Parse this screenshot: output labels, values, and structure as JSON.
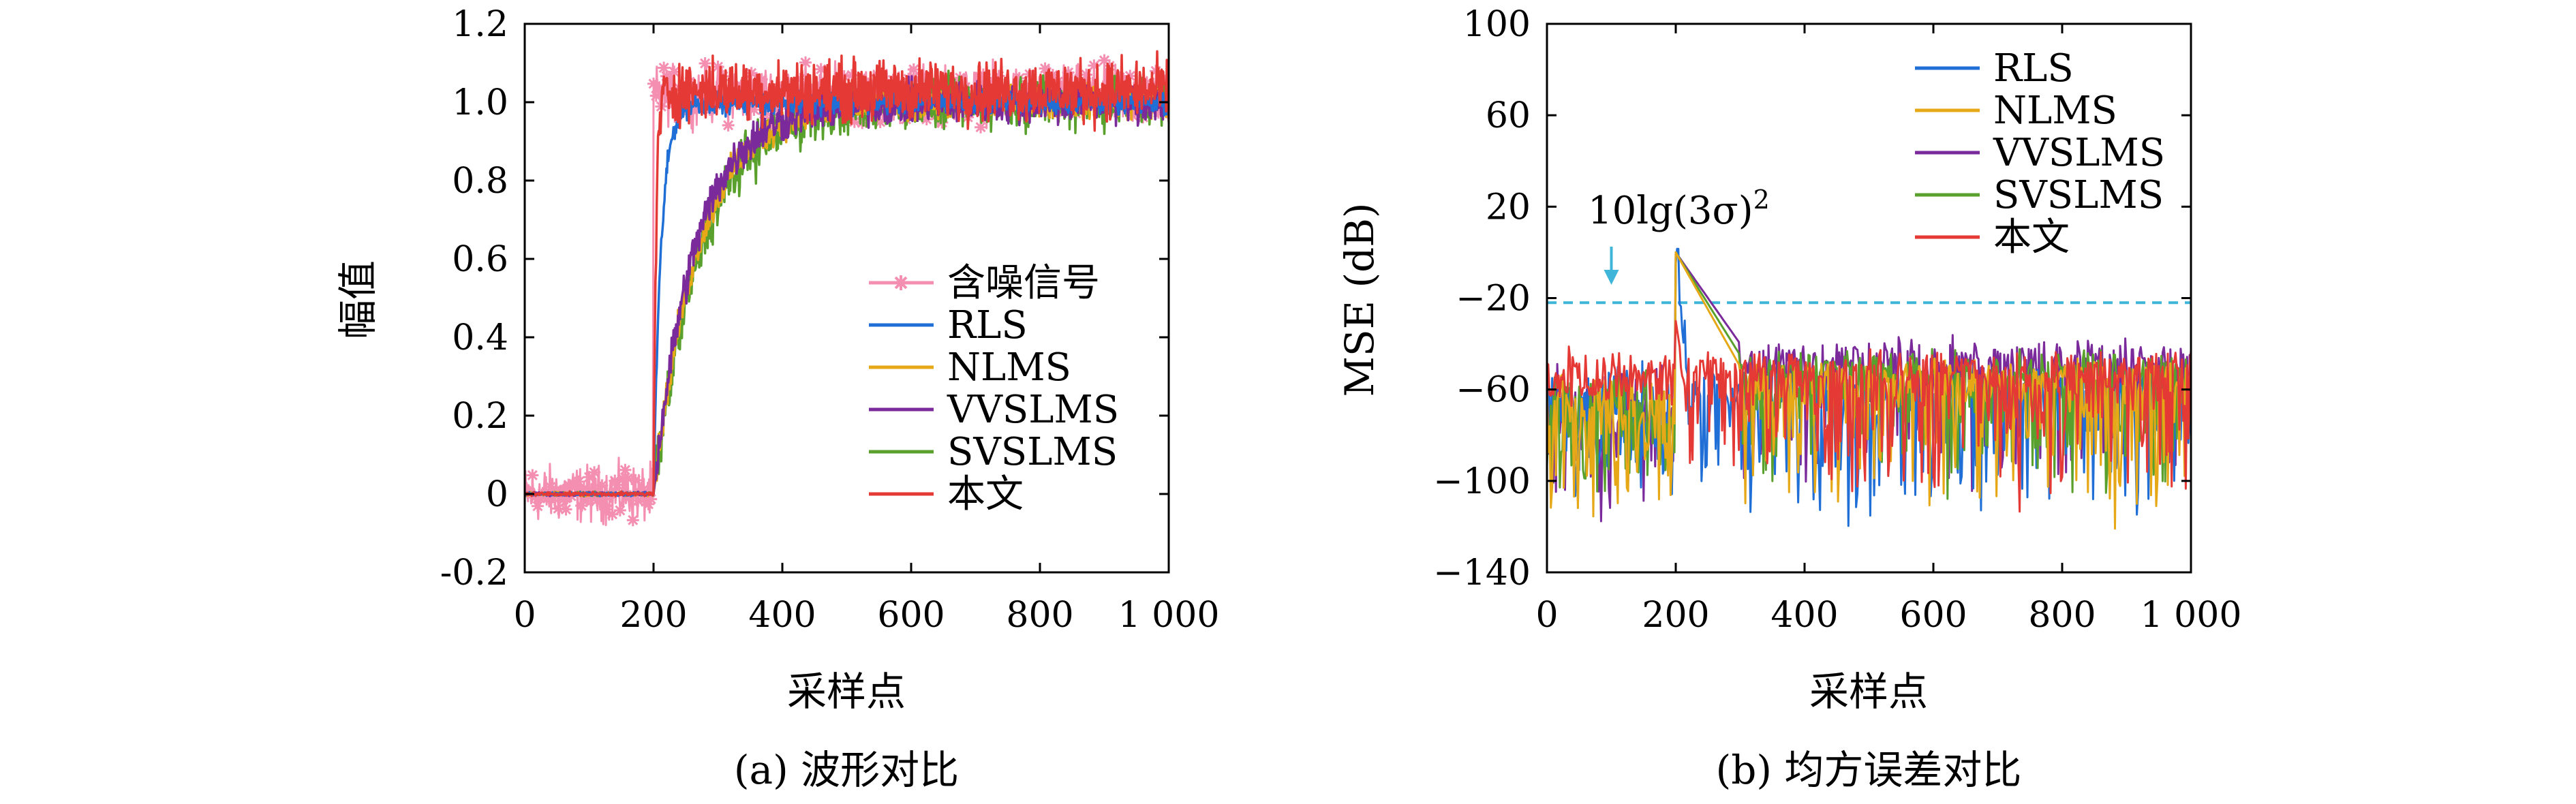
{
  "chart_data": [
    {
      "type": "line",
      "caption": "(a) 波形对比",
      "xlabel": "采样点",
      "ylabel": "幅值",
      "xlim": [
        0,
        1000
      ],
      "ylim": [
        -0.2,
        1.2
      ],
      "xticks": [
        0,
        200,
        400,
        600,
        800,
        1000
      ],
      "xtick_labels": [
        "0",
        "200",
        "400",
        "600",
        "800",
        "1 000"
      ],
      "yticks": [
        -0.2,
        0,
        0.2,
        0.4,
        0.6,
        0.8,
        1.0,
        1.2
      ],
      "ytick_labels": [
        "-0.2",
        "0",
        "0.2",
        "0.4",
        "0.6",
        "0.8",
        "1.0",
        "1.2"
      ],
      "step_at": 200,
      "legend_position": "lower-right",
      "series": [
        {
          "name": "含噪信号",
          "color": "#f48fb1",
          "marker": "asterisk",
          "level_before": 0,
          "level_after": 1.0,
          "noise": 0.06
        },
        {
          "name": "RLS",
          "color": "#1f6fd6",
          "level_before": 0,
          "level_after": 1.0,
          "rise_time": 12
        },
        {
          "name": "NLMS",
          "color": "#e6a817",
          "level_before": 0,
          "level_after": 1.0,
          "rise_time": 70
        },
        {
          "name": "VVSLMS",
          "color": "#7b2a9c",
          "level_before": 0,
          "level_after": 1.0,
          "rise_time": 65
        },
        {
          "name": "SVSLMS",
          "color": "#5aa02c",
          "level_before": 0,
          "level_after": 1.0,
          "rise_time": 75
        },
        {
          "name": "本文",
          "color": "#e53935",
          "level_before": 0,
          "level_after": 1.03,
          "rise_time": 4
        }
      ]
    },
    {
      "type": "line",
      "caption": "(b) 均方误差对比",
      "xlabel": "采样点",
      "ylabel": "MSE (dB)",
      "xlim": [
        0,
        1000
      ],
      "ylim": [
        -140,
        100
      ],
      "xticks": [
        0,
        200,
        400,
        600,
        800,
        1000
      ],
      "xtick_labels": [
        "0",
        "200",
        "400",
        "600",
        "800",
        "1 000"
      ],
      "yticks": [
        -140,
        -100,
        -60,
        -20,
        20,
        60,
        100
      ],
      "ytick_labels": [
        "−140",
        "−100",
        "−60",
        "−20",
        "20",
        "60",
        "100"
      ],
      "reference_line": {
        "y": -22,
        "color": "#3fb6d9",
        "style": "dashed"
      },
      "annotation": {
        "text": "10lg(3σ)",
        "superscript": "2",
        "arrow_x": 100
      },
      "legend_position": "top-right",
      "series": [
        {
          "name": "RLS",
          "color": "#1f6fd6",
          "peak": 0,
          "baseline_after": -55
        },
        {
          "name": "NLMS",
          "color": "#e6a817",
          "peak": 0,
          "baseline_after": -50
        },
        {
          "name": "VVSLMS",
          "color": "#7b2a9c",
          "peak": 0,
          "baseline_after": -40
        },
        {
          "name": "SVSLMS",
          "color": "#5aa02c",
          "peak": 0,
          "baseline_after": -45
        },
        {
          "name": "本文",
          "color": "#e53935",
          "peak": -30,
          "baseline_after": -45
        }
      ]
    }
  ]
}
